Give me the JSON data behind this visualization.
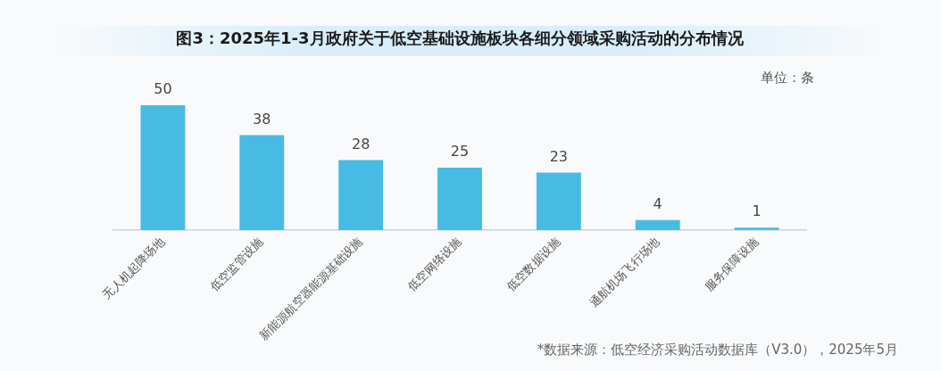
{
  "chart_data": {
    "type": "bar",
    "title": "图3：2025年1-3月政府关于低空基础设施板块各细分领域采购活动的分布情况",
    "categories": [
      "无人机起降场地",
      "低空监管设施",
      "新能源航空器能源基础设施",
      "低空网络设施",
      "低空数据设施",
      "通航机场飞行场地",
      "服务保障设施"
    ],
    "values": [
      50,
      38,
      28,
      25,
      23,
      4,
      1
    ],
    "color": "#48bbe4",
    "data_labels": true,
    "tick_labels": "x",
    "annotations": [
      "单位：条",
      "*数据来源：低空经济采购活动数据库（V3.0），2025年5月"
    ]
  }
}
